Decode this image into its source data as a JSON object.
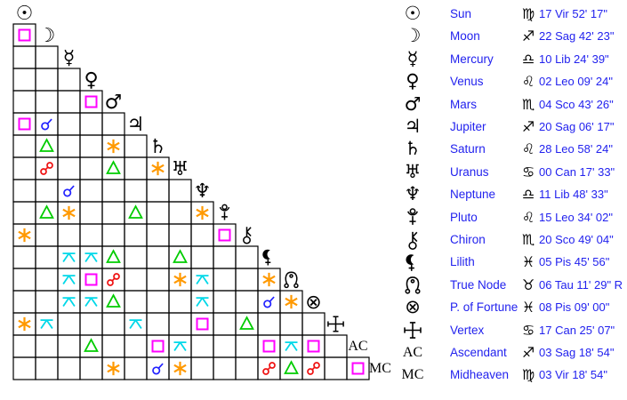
{
  "colors": {
    "background": "#FFFFFF",
    "grid_line": "#000000",
    "glyph_black": "#000000",
    "label_blue": "#2222EE",
    "aspect_conjunction": "#2222FF",
    "aspect_opposition": "#EE1111",
    "aspect_square": "#FF00FF",
    "aspect_trine": "#00CC00",
    "aspect_sextile": "#FF9900",
    "aspect_quincunx": "#00D8E8"
  },
  "aspect_grid": {
    "planet_order": [
      "sun",
      "moon",
      "mercury",
      "venus",
      "mars",
      "jupiter",
      "saturn",
      "uranus",
      "neptune",
      "pluto",
      "chiron",
      "lilith",
      "true-node",
      "fortune",
      "vertex",
      "ascendant",
      "midheaven"
    ],
    "planet_glyph_chars": {
      "sun": "☉",
      "moon": "☽",
      "mercury": "☿",
      "venus": "♀",
      "mars": "♂",
      "jupiter": "♃",
      "saturn": "♄",
      "uranus": "♅",
      "neptune": "♆",
      "fortune": "⊗",
      "ascendant": "AC",
      "midheaven": "MC"
    },
    "aspects": [
      {
        "row": 2,
        "col": 1,
        "type": "square"
      },
      {
        "row": 5,
        "col": 4,
        "type": "square"
      },
      {
        "row": 6,
        "col": 1,
        "type": "square"
      },
      {
        "row": 6,
        "col": 2,
        "type": "conjunction"
      },
      {
        "row": 7,
        "col": 2,
        "type": "trine"
      },
      {
        "row": 7,
        "col": 5,
        "type": "sextile"
      },
      {
        "row": 8,
        "col": 2,
        "type": "opposition"
      },
      {
        "row": 8,
        "col": 5,
        "type": "trine"
      },
      {
        "row": 8,
        "col": 7,
        "type": "sextile"
      },
      {
        "row": 9,
        "col": 3,
        "type": "conjunction"
      },
      {
        "row": 10,
        "col": 2,
        "type": "trine"
      },
      {
        "row": 10,
        "col": 3,
        "type": "sextile"
      },
      {
        "row": 10,
        "col": 6,
        "type": "trine"
      },
      {
        "row": 10,
        "col": 9,
        "type": "sextile"
      },
      {
        "row": 11,
        "col": 1,
        "type": "sextile"
      },
      {
        "row": 11,
        "col": 10,
        "type": "square"
      },
      {
        "row": 12,
        "col": 3,
        "type": "quincunx"
      },
      {
        "row": 12,
        "col": 4,
        "type": "quincunx"
      },
      {
        "row": 12,
        "col": 5,
        "type": "trine"
      },
      {
        "row": 12,
        "col": 8,
        "type": "trine"
      },
      {
        "row": 13,
        "col": 3,
        "type": "quincunx"
      },
      {
        "row": 13,
        "col": 4,
        "type": "square"
      },
      {
        "row": 13,
        "col": 5,
        "type": "opposition"
      },
      {
        "row": 13,
        "col": 8,
        "type": "sextile"
      },
      {
        "row": 13,
        "col": 9,
        "type": "quincunx"
      },
      {
        "row": 13,
        "col": 12,
        "type": "sextile"
      },
      {
        "row": 14,
        "col": 3,
        "type": "quincunx"
      },
      {
        "row": 14,
        "col": 4,
        "type": "quincunx"
      },
      {
        "row": 14,
        "col": 5,
        "type": "trine"
      },
      {
        "row": 14,
        "col": 9,
        "type": "quincunx"
      },
      {
        "row": 14,
        "col": 12,
        "type": "conjunction"
      },
      {
        "row": 14,
        "col": 13,
        "type": "sextile"
      },
      {
        "row": 15,
        "col": 1,
        "type": "sextile"
      },
      {
        "row": 15,
        "col": 2,
        "type": "quincunx"
      },
      {
        "row": 15,
        "col": 6,
        "type": "quincunx"
      },
      {
        "row": 15,
        "col": 9,
        "type": "square"
      },
      {
        "row": 15,
        "col": 11,
        "type": "trine"
      },
      {
        "row": 16,
        "col": 4,
        "type": "trine"
      },
      {
        "row": 16,
        "col": 7,
        "type": "square"
      },
      {
        "row": 16,
        "col": 8,
        "type": "quincunx"
      },
      {
        "row": 16,
        "col": 12,
        "type": "square"
      },
      {
        "row": 16,
        "col": 13,
        "type": "quincunx"
      },
      {
        "row": 16,
        "col": 14,
        "type": "square"
      },
      {
        "row": 17,
        "col": 5,
        "type": "sextile"
      },
      {
        "row": 17,
        "col": 7,
        "type": "conjunction"
      },
      {
        "row": 17,
        "col": 8,
        "type": "sextile"
      },
      {
        "row": 17,
        "col": 12,
        "type": "opposition"
      },
      {
        "row": 17,
        "col": 13,
        "type": "trine"
      },
      {
        "row": 17,
        "col": 14,
        "type": "opposition"
      },
      {
        "row": 17,
        "col": 16,
        "type": "square"
      }
    ]
  },
  "legend": {
    "sign_glyph_chars": {
      "vir": "♍",
      "sag": "♐",
      "lib": "♎",
      "leo": "♌",
      "sco": "♏",
      "can": "♋",
      "pis": "♓",
      "tau": "♉"
    },
    "rows": [
      {
        "planet": "sun",
        "name": "Sun",
        "sign": "vir",
        "position": "17 Vir 52' 17\""
      },
      {
        "planet": "moon",
        "name": "Moon",
        "sign": "sag",
        "position": "22 Sag 42' 23\""
      },
      {
        "planet": "mercury",
        "name": "Mercury",
        "sign": "lib",
        "position": "10 Lib 24' 39\""
      },
      {
        "planet": "venus",
        "name": "Venus",
        "sign": "leo",
        "position": "02 Leo 09' 24\""
      },
      {
        "planet": "mars",
        "name": "Mars",
        "sign": "sco",
        "position": "04 Sco 43' 26\""
      },
      {
        "planet": "jupiter",
        "name": "Jupiter",
        "sign": "sag",
        "position": "20 Sag 06' 17\""
      },
      {
        "planet": "saturn",
        "name": "Saturn",
        "sign": "leo",
        "position": "28 Leo 58' 24\""
      },
      {
        "planet": "uranus",
        "name": "Uranus",
        "sign": "can",
        "position": "00 Can 17' 33\""
      },
      {
        "planet": "neptune",
        "name": "Neptune",
        "sign": "lib",
        "position": "11 Lib 48' 33\""
      },
      {
        "planet": "pluto",
        "name": "Pluto",
        "sign": "leo",
        "position": "15 Leo 34' 02\""
      },
      {
        "planet": "chiron",
        "name": "Chiron",
        "sign": "sco",
        "position": "20 Sco 49' 04\""
      },
      {
        "planet": "lilith",
        "name": "Lilith",
        "sign": "pis",
        "position": "05 Pis 45' 56\""
      },
      {
        "planet": "true-node",
        "name": "True Node",
        "sign": "tau",
        "position": "06 Tau 11' 29\" R"
      },
      {
        "planet": "fortune",
        "name": "P. of Fortune",
        "sign": "pis",
        "position": "08 Pis 09' 00\""
      },
      {
        "planet": "vertex",
        "name": "Vertex",
        "sign": "can",
        "position": "17 Can 25' 07\""
      },
      {
        "planet": "ascendant",
        "name": "Ascendant",
        "sign": "sag",
        "position": "03 Sag 18' 54\""
      },
      {
        "planet": "midheaven",
        "name": "Midheaven",
        "sign": "vir",
        "position": "03 Vir 18' 54\""
      }
    ]
  }
}
